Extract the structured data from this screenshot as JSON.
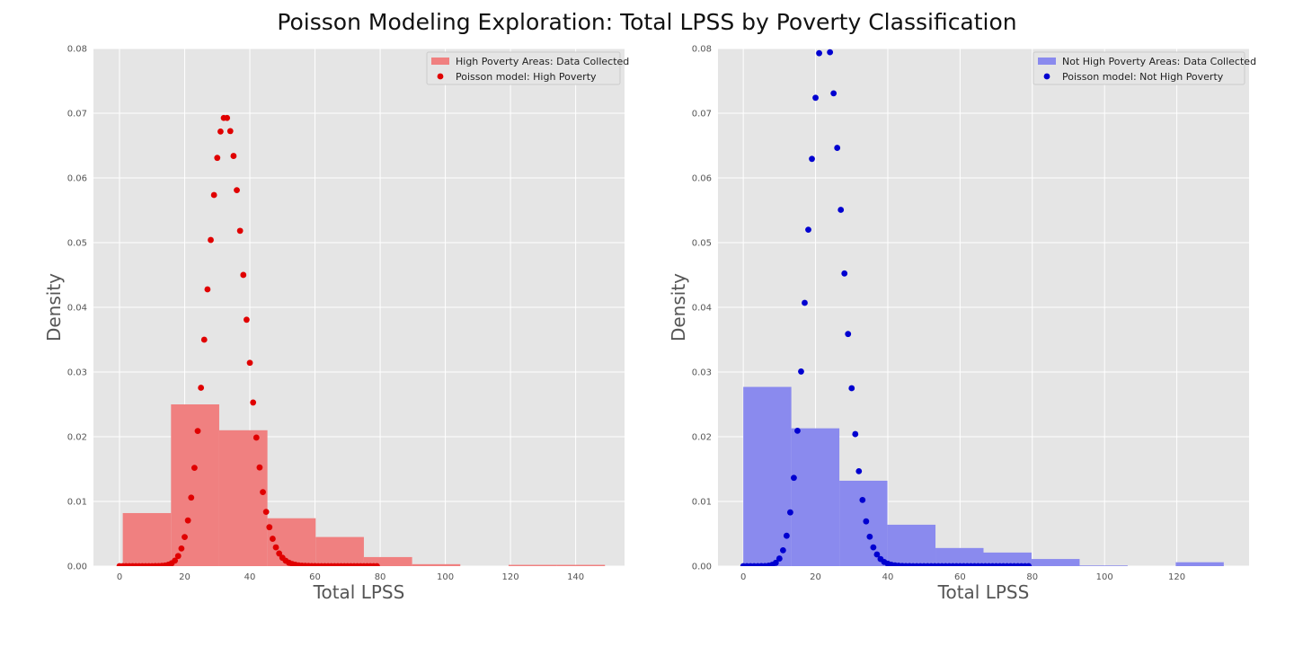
{
  "figure": {
    "title": "Poisson Modeling Exploration: Total LPSS by Poverty Classification"
  },
  "chart_data": [
    {
      "type": "bar",
      "xlabel": "Total LPSS",
      "ylabel": "Density",
      "xlim": [
        -8,
        155
      ],
      "ylim": [
        0,
        0.08
      ],
      "xticks": [
        0,
        20,
        40,
        60,
        80,
        100,
        120,
        140
      ],
      "yticks": [
        0.0,
        0.01,
        0.02,
        0.03,
        0.04,
        0.05,
        0.06,
        0.07,
        0.08
      ],
      "grid": true,
      "legend_position": "top-right",
      "colors": {
        "hist": "#f08080",
        "points": "#e00000",
        "background": "#e5e5e5"
      },
      "histogram": {
        "name": "High Poverty Areas: Data Collected",
        "bin_edges": [
          1,
          15.8,
          30.6,
          45.4,
          60.2,
          75,
          89.8,
          104.6,
          119.4,
          134.2,
          149
        ],
        "densities": [
          0.0082,
          0.025,
          0.021,
          0.0074,
          0.0045,
          0.0014,
          0.0003,
          0.0,
          0.0002,
          0.0002
        ]
      },
      "poisson": {
        "name": "Poisson model: High Poverty",
        "mean": 33,
        "x_range": [
          0,
          79
        ]
      }
    },
    {
      "type": "bar",
      "xlabel": "Total LPSS",
      "ylabel": "Density",
      "xlim": [
        -7,
        140
      ],
      "ylim": [
        0,
        0.08
      ],
      "xticks": [
        0,
        20,
        40,
        60,
        80,
        100,
        120
      ],
      "yticks": [
        0.0,
        0.01,
        0.02,
        0.03,
        0.04,
        0.05,
        0.06,
        0.07,
        0.08
      ],
      "grid": true,
      "legend_position": "top-right",
      "colors": {
        "hist": "#8a8aee",
        "points": "#0000d0",
        "background": "#e5e5e5"
      },
      "histogram": {
        "name": "Not High Poverty Areas: Data Collected",
        "bin_edges": [
          0,
          13.3,
          26.6,
          39.9,
          53.2,
          66.5,
          79.8,
          93.1,
          106.4,
          119.7,
          133
        ],
        "densities": [
          0.0277,
          0.0213,
          0.0132,
          0.0064,
          0.0028,
          0.0021,
          0.0011,
          0.0001,
          0.0,
          0.0006
        ]
      },
      "poisson": {
        "name": "Poisson model: Not High Poverty",
        "mean": 23,
        "x_range": [
          0,
          79
        ]
      }
    }
  ]
}
